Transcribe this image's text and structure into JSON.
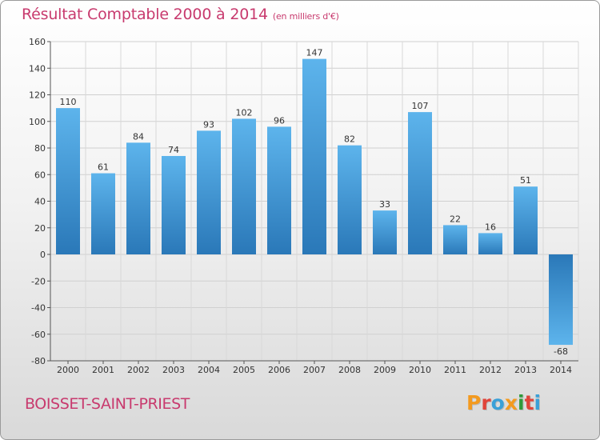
{
  "header": {
    "title": "Résultat Comptable 2000 à 2014",
    "subtitle": "(en milliers d'€)"
  },
  "footer": {
    "place": "BOISSET-SAINT-PRIEST",
    "logo": "Proxiti"
  },
  "colors": {
    "bar_light": "#5db4ec",
    "bar_dark": "#2a78b8",
    "title": "#c83a6e",
    "logo": [
      "#f39a1f",
      "#e0443a",
      "#3aa0d8",
      "#f39a1f",
      "#2f9a3a",
      "#e0443a",
      "#3aa0d8"
    ]
  },
  "chart_data": {
    "type": "bar",
    "categories": [
      "2000",
      "2001",
      "2002",
      "2003",
      "2004",
      "2005",
      "2006",
      "2007",
      "2008",
      "2009",
      "2010",
      "2011",
      "2012",
      "2013",
      "2014"
    ],
    "values": [
      110,
      61,
      84,
      74,
      93,
      102,
      96,
      147,
      82,
      33,
      107,
      22,
      16,
      51,
      -68
    ],
    "ylim": [
      -80,
      160
    ],
    "yticks": [
      -80,
      -60,
      -40,
      -20,
      0,
      20,
      40,
      60,
      80,
      100,
      120,
      140,
      160
    ],
    "grid": true,
    "xlabel": "",
    "ylabel": ""
  }
}
